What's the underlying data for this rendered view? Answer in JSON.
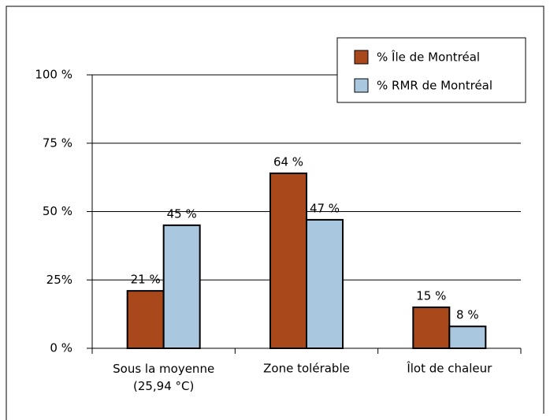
{
  "chart_data": {
    "type": "bar",
    "categories": [
      "Sous la moyenne (25,94 °C)",
      "Zone tolérable",
      "Îlot de chaleur"
    ],
    "series": [
      {
        "name": "% Île de Montréal",
        "color": "#a9481b",
        "values": [
          21,
          64,
          15
        ],
        "value_labels": [
          "21 %",
          "64 %",
          "15 %"
        ]
      },
      {
        "name": "% RMR de Montréal",
        "color": "#a9c7df",
        "values": [
          45,
          47,
          8
        ],
        "value_labels": [
          "45 %",
          "47 %",
          "8 %"
        ]
      }
    ],
    "ylim": [
      0,
      100
    ],
    "yticks": [
      {
        "value": 0,
        "label": "0 %"
      },
      {
        "value": 25,
        "label": "25%"
      },
      {
        "value": 50,
        "label": "50 %"
      },
      {
        "value": 75,
        "label": "75 %"
      },
      {
        "value": 100,
        "label": "100 %"
      }
    ],
    "grid": true,
    "legend": "top-right"
  }
}
